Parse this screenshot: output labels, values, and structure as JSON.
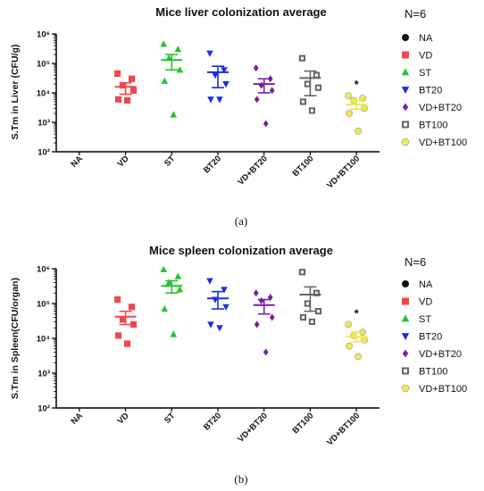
{
  "panel_labels": [
    "(a)",
    "(b)"
  ],
  "legend_title": "N=6",
  "tick_labels": [
    "10²",
    "10³",
    "10⁴",
    "10⁵",
    "10⁶"
  ],
  "groups": [
    {
      "name": "NA",
      "color": "#111111",
      "marker": "circle"
    },
    {
      "name": "VD",
      "color": "#f2464e",
      "marker": "square"
    },
    {
      "name": "ST",
      "color": "#22c32e",
      "marker": "triangle-up"
    },
    {
      "name": "BT20",
      "color": "#1e2ee0",
      "marker": "triangle-down"
    },
    {
      "name": "VD+BT20",
      "color": "#7b1fa2",
      "marker": "diamond"
    },
    {
      "name": "BT100",
      "color": "#666666",
      "marker": "square-open"
    },
    {
      "name": "VD+BT100",
      "color": "#f3e84a",
      "marker": "circle-outline"
    }
  ],
  "chart_data": [
    {
      "type": "scatter",
      "title": "Mice liver colonization average",
      "xlabel": "",
      "ylabel": "S.Tm in Liver (CFU/g)",
      "y_scale": "log",
      "ylim": [
        100,
        1000000
      ],
      "categories": [
        "NA",
        "VD",
        "ST",
        "BT20",
        "VD+BT20",
        "BT100",
        "VD+BT100"
      ],
      "series": [
        {
          "name": "NA",
          "values": [],
          "mean": null,
          "sem": null
        },
        {
          "name": "VD",
          "values": [
            45000,
            30000,
            18000,
            12000,
            6000,
            5500
          ],
          "mean": 16000,
          "sem": [
            9000,
            22000
          ]
        },
        {
          "name": "ST",
          "values": [
            450000,
            300000,
            150000,
            60000,
            25000,
            1800
          ],
          "mean": 130000,
          "sem": [
            60000,
            200000
          ]
        },
        {
          "name": "BT20",
          "values": [
            220000,
            60000,
            40000,
            20000,
            6000,
            6000
          ],
          "mean": 50000,
          "sem": [
            15000,
            80000
          ]
        },
        {
          "name": "VD+BT20",
          "values": [
            70000,
            30000,
            18000,
            12000,
            6000,
            900
          ],
          "mean": 20000,
          "sem": [
            10000,
            30000
          ]
        },
        {
          "name": "BT100",
          "values": [
            150000,
            40000,
            20000,
            15000,
            5000,
            2500
          ],
          "mean": 32000,
          "sem": [
            8000,
            55000
          ]
        },
        {
          "name": "VD+BT100",
          "values": [
            8000,
            6500,
            5500,
            3000,
            2000,
            500
          ],
          "mean": 4000,
          "sem": [
            2800,
            5200
          ]
        }
      ],
      "annotations": [
        {
          "text": "*",
          "category": "VD+BT100"
        }
      ]
    },
    {
      "type": "scatter",
      "title": "Mice spleen colonization average",
      "xlabel": "",
      "ylabel": "S.Tm in Spleen(CFU/organ)",
      "y_scale": "log",
      "ylim": [
        100,
        1000000
      ],
      "categories": [
        "NA",
        "VD",
        "ST",
        "BT20",
        "VD+BT20",
        "BT100",
        "VD+BT100"
      ],
      "series": [
        {
          "name": "NA",
          "values": [],
          "mean": null,
          "sem": null
        },
        {
          "name": "VD",
          "values": [
            130000,
            80000,
            35000,
            25000,
            12000,
            7000
          ],
          "mean": 42000,
          "sem": [
            25000,
            60000
          ]
        },
        {
          "name": "ST",
          "values": [
            950000,
            600000,
            400000,
            250000,
            70000,
            13000
          ],
          "mean": 320000,
          "sem": [
            200000,
            450000
          ]
        },
        {
          "name": "BT20",
          "values": [
            450000,
            250000,
            130000,
            80000,
            25000,
            20000
          ],
          "mean": 140000,
          "sem": [
            70000,
            220000
          ]
        },
        {
          "name": "VD+BT20",
          "values": [
            200000,
            150000,
            120000,
            40000,
            25000,
            4000
          ],
          "mean": 90000,
          "sem": [
            50000,
            130000
          ]
        },
        {
          "name": "BT100",
          "values": [
            800000,
            200000,
            100000,
            60000,
            40000,
            30000
          ],
          "mean": 180000,
          "sem": [
            60000,
            300000
          ]
        },
        {
          "name": "VD+BT100",
          "values": [
            25000,
            15000,
            12000,
            9000,
            6000,
            3000
          ],
          "mean": 11000,
          "sem": [
            8000,
            15000
          ]
        }
      ],
      "annotations": [
        {
          "text": "*",
          "category": "VD+BT100"
        }
      ]
    }
  ]
}
